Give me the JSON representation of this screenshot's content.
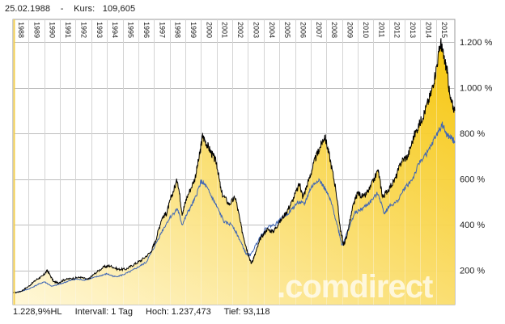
{
  "header": {
    "date": "25.02.1988",
    "separator": "-",
    "price_label": "Kurs:",
    "price_value": "109,605"
  },
  "footer": {
    "performance": "1.228,9%HL",
    "interval_label": "Intervall: 1 Tag",
    "high_label": "Hoch: 1.237,473",
    "low_label": "Tief: 93,118"
  },
  "watermark": ".comdirect",
  "colors": {
    "area_top": "#f5c300",
    "area_bottom": "#fff7d6",
    "main_line": "#000000",
    "benchmark_line": "#3f66b5",
    "grid": "#bdbdbd",
    "crosshair": "#f3cf4f"
  },
  "chart_data": {
    "type": "line",
    "x_tick_labels": [
      "1988",
      "1989",
      "1990",
      "1991",
      "1992",
      "1993",
      "1994",
      "1995",
      "1996",
      "1997",
      "1998",
      "1999",
      "2000",
      "2001",
      "2002",
      "2003",
      "2004",
      "2005",
      "2006",
      "2007",
      "2008",
      "2009",
      "2010",
      "2011",
      "2012",
      "2013",
      "2014",
      "2015"
    ],
    "y_tick_labels": [
      "200 %",
      "400 %",
      "600 %",
      "800 %",
      "1.000 %",
      "1.200 %"
    ],
    "y_ticks": [
      200,
      400,
      600,
      800,
      1000,
      1200
    ],
    "x_range": [
      1988.0,
      2016.2
    ],
    "y_range": [
      50,
      1300
    ],
    "series": [
      {
        "role": "main",
        "filled": true,
        "color": "#000000",
        "points": [
          [
            1988.0,
            100
          ],
          [
            1988.5,
            108
          ],
          [
            1989.0,
            130
          ],
          [
            1989.5,
            160
          ],
          [
            1989.9,
            175
          ],
          [
            1990.2,
            200
          ],
          [
            1990.6,
            150
          ],
          [
            1990.9,
            145
          ],
          [
            1991.3,
            160
          ],
          [
            1991.8,
            165
          ],
          [
            1992.3,
            170
          ],
          [
            1992.8,
            160
          ],
          [
            1993.2,
            185
          ],
          [
            1993.8,
            215
          ],
          [
            1994.2,
            220
          ],
          [
            1994.7,
            205
          ],
          [
            1995.2,
            205
          ],
          [
            1995.7,
            225
          ],
          [
            1996.2,
            245
          ],
          [
            1996.8,
            280
          ],
          [
            1997.1,
            330
          ],
          [
            1997.5,
            430
          ],
          [
            1997.8,
            450
          ],
          [
            1998.1,
            520
          ],
          [
            1998.5,
            600
          ],
          [
            1998.8,
            450
          ],
          [
            1999.1,
            520
          ],
          [
            1999.6,
            600
          ],
          [
            1999.9,
            700
          ],
          [
            2000.1,
            790
          ],
          [
            2000.4,
            750
          ],
          [
            2000.7,
            710
          ],
          [
            2001.0,
            670
          ],
          [
            2001.3,
            540
          ],
          [
            2001.8,
            490
          ],
          [
            2002.2,
            520
          ],
          [
            2002.6,
            380
          ],
          [
            2002.9,
            300
          ],
          [
            2003.2,
            230
          ],
          [
            2003.4,
            260
          ],
          [
            2003.8,
            340
          ],
          [
            2004.2,
            380
          ],
          [
            2004.6,
            370
          ],
          [
            2004.9,
            400
          ],
          [
            2005.4,
            450
          ],
          [
            2005.8,
            500
          ],
          [
            2006.3,
            580
          ],
          [
            2006.5,
            520
          ],
          [
            2006.9,
            600
          ],
          [
            2007.3,
            690
          ],
          [
            2007.6,
            740
          ],
          [
            2007.9,
            790
          ],
          [
            2008.2,
            700
          ],
          [
            2008.6,
            560
          ],
          [
            2008.9,
            380
          ],
          [
            2009.1,
            310
          ],
          [
            2009.3,
            350
          ],
          [
            2009.7,
            480
          ],
          [
            2010.0,
            540
          ],
          [
            2010.4,
            520
          ],
          [
            2010.8,
            560
          ],
          [
            2011.3,
            640
          ],
          [
            2011.6,
            520
          ],
          [
            2011.9,
            550
          ],
          [
            2012.4,
            600
          ],
          [
            2012.8,
            680
          ],
          [
            2013.2,
            700
          ],
          [
            2013.6,
            790
          ],
          [
            2014.0,
            850
          ],
          [
            2014.3,
            900
          ],
          [
            2014.7,
            980
          ],
          [
            2015.0,
            1080
          ],
          [
            2015.3,
            1200
          ],
          [
            2015.5,
            1130
          ],
          [
            2015.7,
            1080
          ],
          [
            2015.9,
            950
          ],
          [
            2016.2,
            900
          ]
        ]
      },
      {
        "role": "benchmark",
        "filled": false,
        "color": "#3f66b5",
        "points": [
          [
            1988.0,
            100
          ],
          [
            1988.5,
            108
          ],
          [
            1989.0,
            118
          ],
          [
            1989.5,
            135
          ],
          [
            1990.0,
            150
          ],
          [
            1990.5,
            130
          ],
          [
            1991.0,
            140
          ],
          [
            1991.5,
            152
          ],
          [
            1992.0,
            162
          ],
          [
            1992.5,
            158
          ],
          [
            1993.0,
            165
          ],
          [
            1993.5,
            175
          ],
          [
            1994.0,
            185
          ],
          [
            1994.5,
            172
          ],
          [
            1995.0,
            180
          ],
          [
            1995.5,
            195
          ],
          [
            1996.0,
            215
          ],
          [
            1996.5,
            235
          ],
          [
            1997.0,
            300
          ],
          [
            1997.5,
            370
          ],
          [
            1998.0,
            430
          ],
          [
            1998.5,
            470
          ],
          [
            1998.8,
            400
          ],
          [
            1999.2,
            460
          ],
          [
            1999.6,
            510
          ],
          [
            2000.0,
            590
          ],
          [
            2000.3,
            570
          ],
          [
            2000.7,
            520
          ],
          [
            2001.0,
            480
          ],
          [
            2001.5,
            410
          ],
          [
            2002.0,
            400
          ],
          [
            2002.5,
            330
          ],
          [
            2002.9,
            270
          ],
          [
            2003.2,
            270
          ],
          [
            2003.7,
            340
          ],
          [
            2004.2,
            390
          ],
          [
            2004.7,
            400
          ],
          [
            2005.2,
            430
          ],
          [
            2005.7,
            460
          ],
          [
            2006.2,
            500
          ],
          [
            2006.6,
            490
          ],
          [
            2007.0,
            560
          ],
          [
            2007.5,
            600
          ],
          [
            2007.9,
            560
          ],
          [
            2008.3,
            500
          ],
          [
            2008.7,
            400
          ],
          [
            2009.0,
            310
          ],
          [
            2009.3,
            360
          ],
          [
            2009.8,
            450
          ],
          [
            2010.3,
            470
          ],
          [
            2010.8,
            500
          ],
          [
            2011.3,
            540
          ],
          [
            2011.7,
            450
          ],
          [
            2012.0,
            480
          ],
          [
            2012.5,
            500
          ],
          [
            2013.0,
            560
          ],
          [
            2013.5,
            600
          ],
          [
            2014.0,
            680
          ],
          [
            2014.5,
            720
          ],
          [
            2015.0,
            790
          ],
          [
            2015.4,
            840
          ],
          [
            2015.7,
            790
          ],
          [
            2016.0,
            780
          ],
          [
            2016.2,
            760
          ]
        ]
      }
    ]
  }
}
